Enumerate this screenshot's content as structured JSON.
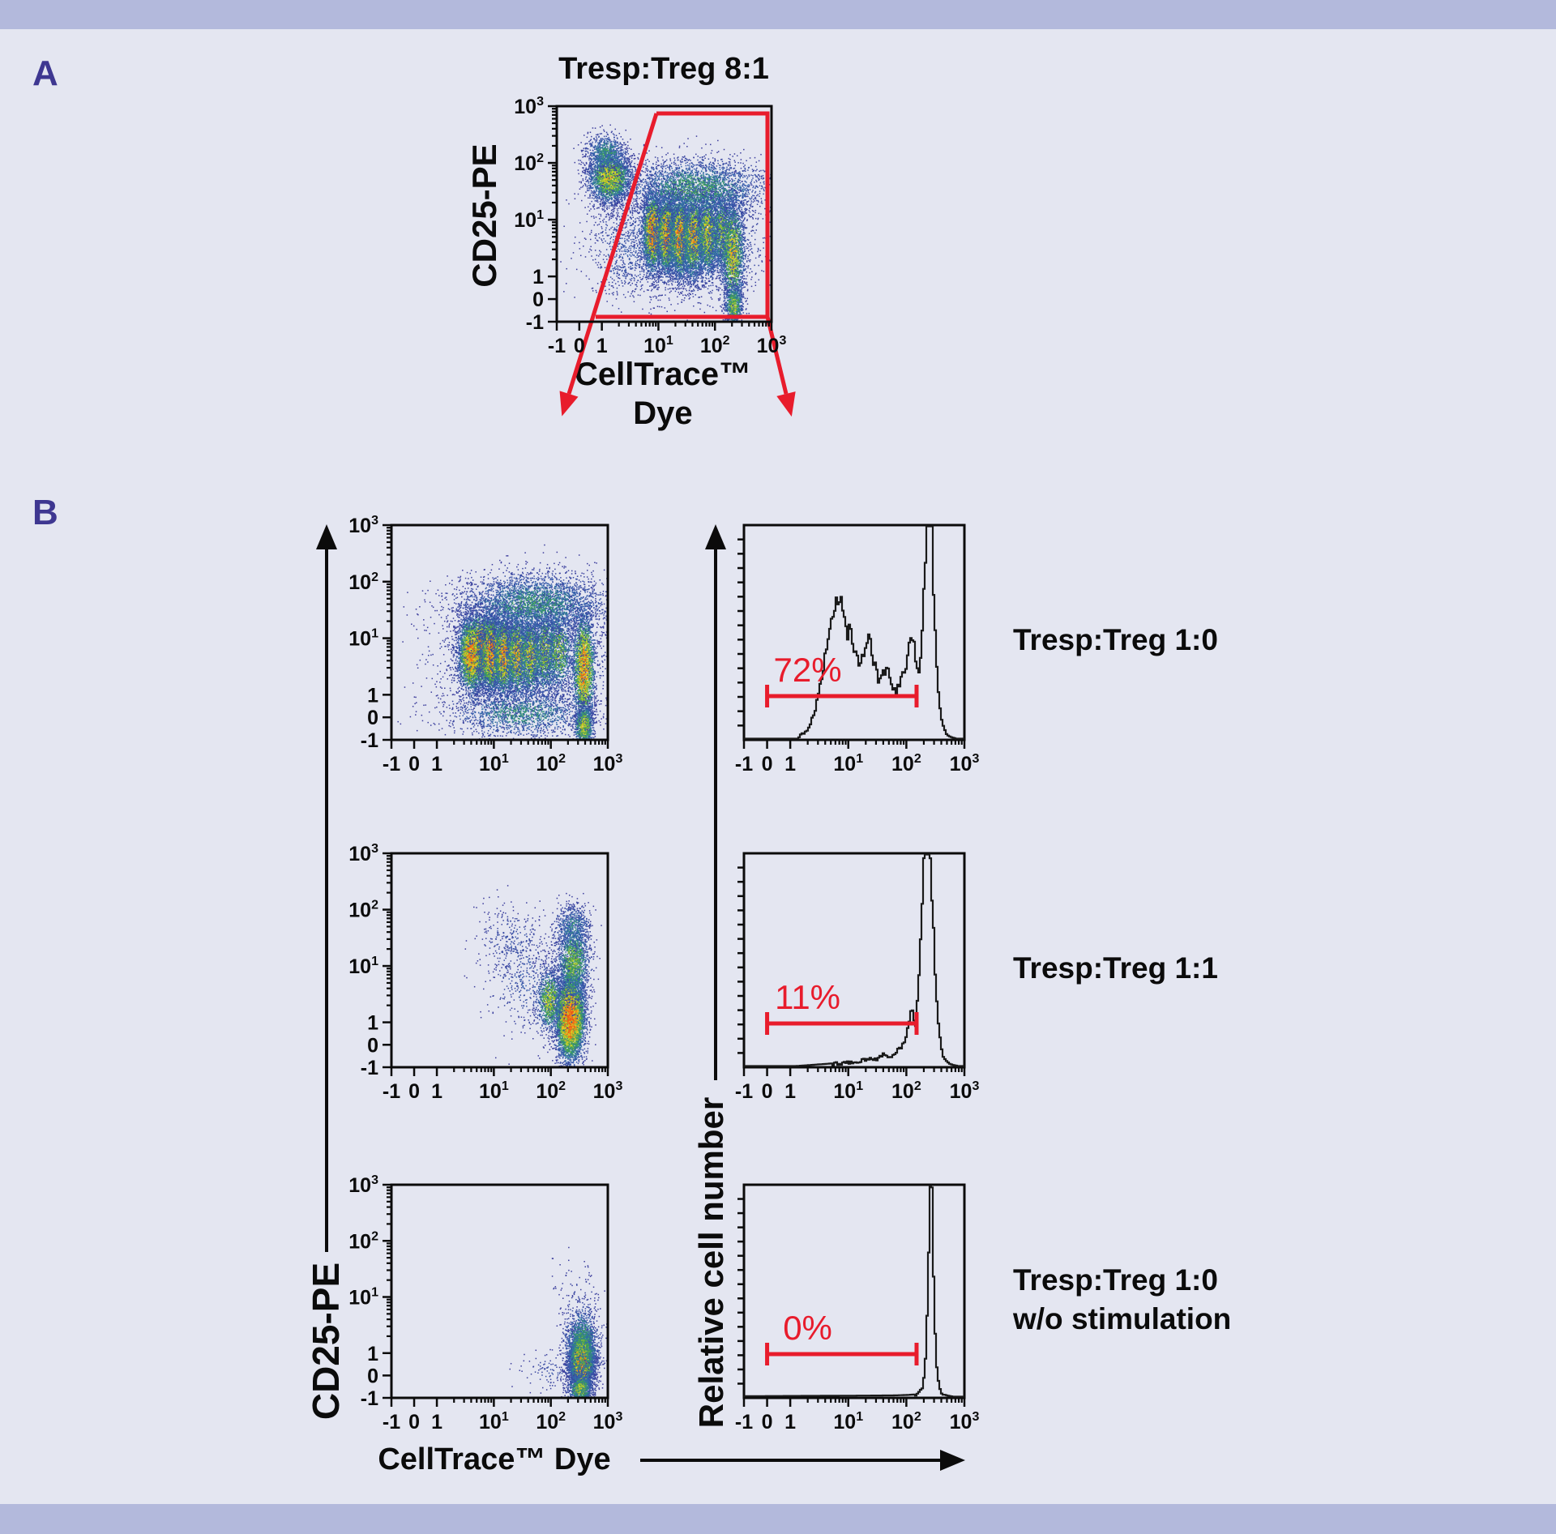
{
  "page": {
    "panel_a_letter": "A",
    "panel_b_letter": "B"
  },
  "colors": {
    "background": "#e4e6f1",
    "band": "#b3b9dc",
    "accent_red": "#e81c2c",
    "panel_letter": "#3e3791",
    "line_black": "#0b0b0b"
  },
  "panel_a": {
    "title": "Tresp:Treg 8:1",
    "y_axis_label": "CD25-PE",
    "x_axis_label_line1": "CellTrace™",
    "x_axis_label_line2": "Dye"
  },
  "panel_b": {
    "scatter_y_axis_label": "CD25-PE",
    "hist_y_axis_label": "Relative cell number",
    "x_axis_label": "CellTrace™ Dye",
    "rows": [
      {
        "label_line1": "Tresp:Treg 1:0",
        "label_line2": ""
      },
      {
        "label_line1": "Tresp:Treg 1:1",
        "label_line2": ""
      },
      {
        "label_line1": "Tresp:Treg 1:0",
        "label_line2": "w/o stimulation"
      }
    ]
  },
  "axis": {
    "values": [
      -1,
      0,
      1,
      10,
      100,
      1000
    ],
    "tick_labels": [
      {
        "t": "-1",
        "sup": ""
      },
      {
        "t": "0",
        "sup": ""
      },
      {
        "t": "1",
        "sup": ""
      },
      {
        "t": "10",
        "sup": "1"
      },
      {
        "t": "10",
        "sup": "2"
      },
      {
        "t": "10",
        "sup": "3"
      }
    ]
  },
  "chart_data": [
    {
      "id": "pa",
      "type": "scatter",
      "kind": "density",
      "title": "Tresp:Treg 8:1",
      "xlabel": "CellTrace Dye",
      "ylabel": "CD25-PE",
      "x_range": [
        -1,
        1000
      ],
      "y_range": [
        -1,
        1000
      ],
      "scale": "biexponential",
      "populations": [
        {
          "x": 1.4,
          "y": 55,
          "sx": 0.05,
          "sy": 0.06,
          "n": 2600,
          "hot": 0.6
        },
        {
          "x": 1.2,
          "y": 150,
          "sx": 0.05,
          "sy": 0.045,
          "n": 700,
          "hot": 0.3
        },
        {
          "x": 8,
          "y": 6,
          "sx": 0.024,
          "sy": 0.09,
          "n": 2800,
          "hot": 0.95
        },
        {
          "x": 14,
          "y": 5.5,
          "sx": 0.022,
          "sy": 0.09,
          "n": 2600,
          "hot": 0.9
        },
        {
          "x": 24,
          "y": 5,
          "sx": 0.024,
          "sy": 0.095,
          "n": 2400,
          "hot": 0.85
        },
        {
          "x": 42,
          "y": 5,
          "sx": 0.026,
          "sy": 0.1,
          "n": 2100,
          "hot": 0.75
        },
        {
          "x": 75,
          "y": 5.5,
          "sx": 0.028,
          "sy": 0.1,
          "n": 1700,
          "hot": 0.62
        },
        {
          "x": 140,
          "y": 6,
          "sx": 0.03,
          "sy": 0.1,
          "n": 1300,
          "hot": 0.5
        },
        {
          "x": 210,
          "y": 2.5,
          "sx": 0.028,
          "sy": 0.13,
          "n": 1800,
          "hot": 0.62
        },
        {
          "x": 215,
          "y": -0.3,
          "sx": 0.022,
          "sy": 0.05,
          "n": 700,
          "hot": 0.5
        },
        {
          "x": 45,
          "y": 35,
          "sx": 0.17,
          "sy": 0.07,
          "n": 2800,
          "hot": 0.33
        },
        {
          "x": 30,
          "y": 4,
          "sx": 0.19,
          "sy": 0.13,
          "n": 2200,
          "hot": 0.22
        },
        {
          "x": 2.5,
          "y": 3,
          "sx": 0.09,
          "sy": 0.13,
          "n": 500,
          "hot": 0.12
        }
      ],
      "gate": {
        "shape": "trapezoid",
        "color": "#e81c2c"
      }
    },
    {
      "id": "s1",
      "type": "scatter",
      "kind": "density",
      "row_label": "Tresp:Treg 1:0",
      "xlabel": "CellTrace Dye",
      "ylabel": "CD25-PE",
      "populations": [
        {
          "x": 6,
          "y": 6,
          "sx": 0.05,
          "sy": 0.085,
          "n": 3500,
          "hot": 1.0
        },
        {
          "x": 4,
          "y": 5,
          "sx": 0.03,
          "sy": 0.09,
          "n": 1800,
          "hot": 0.85
        },
        {
          "x": 9,
          "y": 5.5,
          "sx": 0.025,
          "sy": 0.09,
          "n": 2000,
          "hot": 0.9
        },
        {
          "x": 15,
          "y": 5,
          "sx": 0.025,
          "sy": 0.095,
          "n": 1800,
          "hot": 0.8
        },
        {
          "x": 26,
          "y": 5,
          "sx": 0.027,
          "sy": 0.1,
          "n": 1600,
          "hot": 0.7
        },
        {
          "x": 45,
          "y": 5,
          "sx": 0.028,
          "sy": 0.1,
          "n": 1400,
          "hot": 0.62
        },
        {
          "x": 80,
          "y": 5.5,
          "sx": 0.03,
          "sy": 0.1,
          "n": 1200,
          "hot": 0.55
        },
        {
          "x": 140,
          "y": 6,
          "sx": 0.032,
          "sy": 0.1,
          "n": 1000,
          "hot": 0.5
        },
        {
          "x": 380,
          "y": 3,
          "sx": 0.026,
          "sy": 0.13,
          "n": 2400,
          "hot": 0.8
        },
        {
          "x": 380,
          "y": -0.4,
          "sx": 0.022,
          "sy": 0.05,
          "n": 900,
          "hot": 0.6
        },
        {
          "x": 50,
          "y": 40,
          "sx": 0.18,
          "sy": 0.075,
          "n": 3200,
          "hot": 0.3
        },
        {
          "x": 30,
          "y": 0.2,
          "sx": 0.17,
          "sy": 0.06,
          "n": 1600,
          "hot": 0.28
        },
        {
          "x": 35,
          "y": 5,
          "sx": 0.2,
          "sy": 0.14,
          "n": 1800,
          "hot": 0.18
        }
      ]
    },
    {
      "id": "s2",
      "type": "scatter",
      "kind": "density",
      "row_label": "Tresp:Treg 1:1",
      "xlabel": "CellTrace Dye",
      "ylabel": "CD25-PE",
      "populations": [
        {
          "x": 220,
          "y": 1.2,
          "sx": 0.034,
          "sy": 0.1,
          "n": 5200,
          "hot": 1.0
        },
        {
          "x": 250,
          "y": 12,
          "sx": 0.04,
          "sy": 0.095,
          "n": 1600,
          "hot": 0.45
        },
        {
          "x": 240,
          "y": 50,
          "sx": 0.045,
          "sy": 0.055,
          "n": 500,
          "hot": 0.25
        },
        {
          "x": 95,
          "y": 2.5,
          "sx": 0.03,
          "sy": 0.075,
          "n": 900,
          "hot": 0.55
        },
        {
          "x": 40,
          "y": 6,
          "sx": 0.1,
          "sy": 0.13,
          "n": 450,
          "hot": 0.12
        },
        {
          "x": 22,
          "y": 30,
          "sx": 0.08,
          "sy": 0.08,
          "n": 250,
          "hot": 0.1
        }
      ]
    },
    {
      "id": "s3",
      "type": "scatter",
      "kind": "density",
      "row_label": "Tresp:Treg 1:0 w/o stimulation",
      "xlabel": "CellTrace Dye",
      "ylabel": "CD25-PE",
      "populations": [
        {
          "x": 350,
          "y": 0.6,
          "sx": 0.026,
          "sy": 0.07,
          "n": 6000,
          "hot": 1.0
        },
        {
          "x": 350,
          "y": 1.2,
          "sx": 0.042,
          "sy": 0.105,
          "n": 1400,
          "hot": 0.4
        },
        {
          "x": 330,
          "y": -0.6,
          "sx": 0.03,
          "sy": 0.035,
          "n": 600,
          "hot": 0.5
        },
        {
          "x": 120,
          "y": 0.2,
          "sx": 0.08,
          "sy": 0.05,
          "n": 130,
          "hot": 0.08
        },
        {
          "x": 300,
          "y": 12,
          "sx": 0.07,
          "sy": 0.09,
          "n": 70,
          "hot": 0.05
        }
      ]
    },
    {
      "id": "h1",
      "type": "histogram",
      "row_label": "Tresp:Treg 1:0",
      "xlabel": "CellTrace Dye",
      "ylabel": "Relative cell number",
      "gate": {
        "from": 0,
        "to": 150,
        "label": "72%"
      },
      "curve": [
        [
          1.3,
          0
        ],
        [
          2,
          0.05
        ],
        [
          2.6,
          0.14
        ],
        [
          3.4,
          0.3
        ],
        [
          4.2,
          0.45
        ],
        [
          5,
          0.55
        ],
        [
          6,
          0.63
        ],
        [
          7,
          0.67
        ],
        [
          7.8,
          0.62
        ],
        [
          8.6,
          0.55
        ],
        [
          9.5,
          0.5
        ],
        [
          10.5,
          0.54
        ],
        [
          11.5,
          0.47
        ],
        [
          13,
          0.4
        ],
        [
          15,
          0.34
        ],
        [
          17,
          0.38
        ],
        [
          19,
          0.44
        ],
        [
          22,
          0.47
        ],
        [
          25,
          0.4
        ],
        [
          29,
          0.33
        ],
        [
          33,
          0.27
        ],
        [
          38,
          0.3
        ],
        [
          43,
          0.34
        ],
        [
          49,
          0.3
        ],
        [
          56,
          0.26
        ],
        [
          64,
          0.21
        ],
        [
          73,
          0.25
        ],
        [
          83,
          0.29
        ],
        [
          95,
          0.34
        ],
        [
          105,
          0.4
        ],
        [
          115,
          0.46
        ],
        [
          125,
          0.48
        ],
        [
          135,
          0.41
        ],
        [
          145,
          0.35
        ],
        [
          155,
          0.3
        ],
        [
          165,
          0.35
        ],
        [
          180,
          0.5
        ],
        [
          195,
          0.68
        ],
        [
          210,
          0.9
        ],
        [
          225,
          1.08
        ],
        [
          245,
          1.2
        ],
        [
          262,
          1.05
        ],
        [
          278,
          0.82
        ],
        [
          295,
          0.6
        ],
        [
          315,
          0.42
        ],
        [
          335,
          0.28
        ],
        [
          360,
          0.16
        ],
        [
          390,
          0.09
        ],
        [
          430,
          0.045
        ],
        [
          480,
          0.02
        ],
        [
          560,
          0.008
        ],
        [
          700,
          0
        ]
      ]
    },
    {
      "id": "h2",
      "type": "histogram",
      "row_label": "Tresp:Treg 1:1",
      "xlabel": "CellTrace Dye",
      "ylabel": "Relative cell number",
      "gate": {
        "from": 0,
        "to": 150,
        "label": "11%"
      },
      "curve": [
        [
          2.5,
          0.006
        ],
        [
          5,
          0.012
        ],
        [
          9,
          0.015
        ],
        [
          14,
          0.02
        ],
        [
          19,
          0.028
        ],
        [
          24,
          0.035
        ],
        [
          30,
          0.03
        ],
        [
          36,
          0.045
        ],
        [
          40,
          0.06
        ],
        [
          45,
          0.04
        ],
        [
          52,
          0.05
        ],
        [
          60,
          0.06
        ],
        [
          70,
          0.075
        ],
        [
          80,
          0.09
        ],
        [
          90,
          0.12
        ],
        [
          100,
          0.17
        ],
        [
          108,
          0.22
        ],
        [
          115,
          0.27
        ],
        [
          121,
          0.29
        ],
        [
          127,
          0.25
        ],
        [
          133,
          0.21
        ],
        [
          139,
          0.19
        ],
        [
          146,
          0.24
        ],
        [
          155,
          0.36
        ],
        [
          165,
          0.52
        ],
        [
          178,
          0.72
        ],
        [
          192,
          0.92
        ],
        [
          205,
          1.08
        ],
        [
          220,
          1.18
        ],
        [
          238,
          1.12
        ],
        [
          255,
          0.95
        ],
        [
          270,
          0.78
        ],
        [
          285,
          0.62
        ],
        [
          300,
          0.47
        ],
        [
          318,
          0.34
        ],
        [
          338,
          0.23
        ],
        [
          360,
          0.15
        ],
        [
          385,
          0.09
        ],
        [
          415,
          0.05
        ],
        [
          455,
          0.025
        ],
        [
          520,
          0.012
        ],
        [
          620,
          0.005
        ],
        [
          750,
          0
        ]
      ]
    },
    {
      "id": "h3",
      "type": "histogram",
      "row_label": "Tresp:Treg 1:0 w/o stimulation",
      "xlabel": "CellTrace Dye",
      "ylabel": "Relative cell number",
      "gate": {
        "from": 0,
        "to": 150,
        "label": "0%"
      },
      "curve": [
        [
          3,
          0.004
        ],
        [
          20,
          0.005
        ],
        [
          60,
          0.006
        ],
        [
          100,
          0.008
        ],
        [
          130,
          0.01
        ],
        [
          155,
          0.015
        ],
        [
          175,
          0.03
        ],
        [
          192,
          0.07
        ],
        [
          205,
          0.15
        ],
        [
          216,
          0.3
        ],
        [
          226,
          0.5
        ],
        [
          235,
          0.72
        ],
        [
          243,
          0.9
        ],
        [
          251,
          1.02
        ],
        [
          259,
          1.06
        ],
        [
          267,
          0.95
        ],
        [
          276,
          0.78
        ],
        [
          286,
          0.58
        ],
        [
          297,
          0.4
        ],
        [
          310,
          0.26
        ],
        [
          325,
          0.15
        ],
        [
          342,
          0.08
        ],
        [
          362,
          0.04
        ],
        [
          390,
          0.02
        ],
        [
          430,
          0.01
        ],
        [
          500,
          0.005
        ],
        [
          620,
          0
        ]
      ]
    }
  ]
}
